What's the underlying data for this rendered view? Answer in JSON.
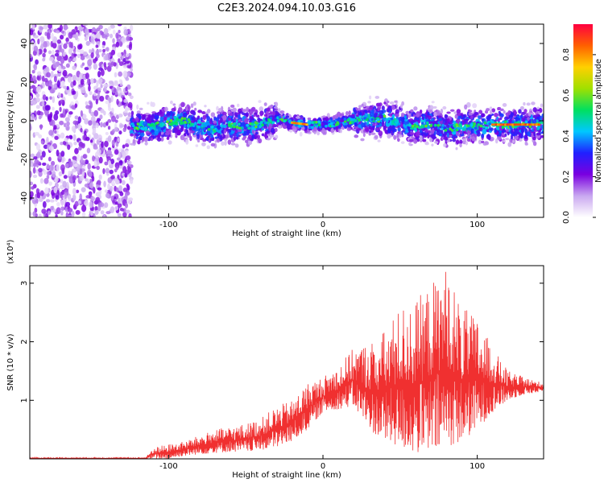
{
  "figure": {
    "title": "C2E3.2024.094.10.03.G16"
  },
  "chart_data": [
    {
      "type": "heatmap",
      "title": "C2E3.2024.094.10.03.G16",
      "xlabel": "Height of straight line (km)",
      "ylabel": "Frequency (Hz)",
      "xlim": [
        -190,
        143
      ],
      "ylim": [
        -50,
        50
      ],
      "x_ticks": [
        -100,
        0,
        100
      ],
      "x_tick_labels": [
        "-100",
        "0",
        "100"
      ],
      "y_ticks": [
        -40,
        -20,
        0,
        20,
        40
      ],
      "y_tick_labels": [
        "-40",
        "-20",
        "0",
        "20",
        "40"
      ],
      "colorbar": {
        "label": "Normalized spectral amplitude",
        "range": [
          0,
          0.95
        ],
        "ticks": [
          0.0,
          0.2,
          0.4,
          0.6,
          0.8
        ],
        "tick_labels": [
          "0.0",
          "0.2",
          "0.4",
          "0.6",
          "0.8"
        ],
        "colormap": [
          "#ffffff",
          "#c9a8f0",
          "#7a00e0",
          "#2020ff",
          "#00c8ff",
          "#00e060",
          "#a0e000",
          "#ffd000",
          "#ff6000",
          "#ff0040"
        ]
      },
      "regions": {
        "noise_floor": {
          "x_range": [
            -190,
            -124
          ],
          "y_range": [
            -50,
            50
          ],
          "level": 0.12
        },
        "signal_band_center": [
          [
            -124,
            -3
          ],
          [
            -110,
            -3
          ],
          [
            -100,
            -1
          ],
          [
            -90,
            0
          ],
          [
            -80,
            -3
          ],
          [
            -70,
            -4
          ],
          [
            -60,
            -2
          ],
          [
            -50,
            -3
          ],
          [
            -40,
            -2
          ],
          [
            -30,
            1
          ],
          [
            -20,
            -1
          ],
          [
            -10,
            -2
          ],
          [
            0,
            -2
          ],
          [
            10,
            -1
          ],
          [
            20,
            0
          ],
          [
            30,
            1
          ],
          [
            40,
            1
          ],
          [
            50,
            -1
          ],
          [
            60,
            -3
          ],
          [
            70,
            -2
          ],
          [
            80,
            -4
          ],
          [
            90,
            -3
          ],
          [
            100,
            -3
          ],
          [
            110,
            -2
          ],
          [
            120,
            -2
          ],
          [
            130,
            -2
          ],
          [
            143,
            -2
          ]
        ],
        "high_amplitude_segments": [
          {
            "x_range": [
              -20,
              -10
            ],
            "y": 0,
            "level": 0.85
          },
          {
            "x_range": [
              110,
              140
            ],
            "y": -2,
            "level": 0.9
          }
        ]
      }
    },
    {
      "type": "line",
      "xlabel": "Height of straight line (km)",
      "ylabel": "SNR (10 * v/v)",
      "y_multiplier": "(x10⁴)",
      "xlim": [
        -190,
        143
      ],
      "ylim": [
        0,
        3.3
      ],
      "x_ticks": [
        -100,
        0,
        100
      ],
      "x_tick_labels": [
        "-100",
        "0",
        "100"
      ],
      "y_ticks": [
        1,
        2,
        3
      ],
      "y_tick_labels": [
        "1",
        "2",
        "3"
      ],
      "series_color": "#f03030",
      "envelope": {
        "x": [
          -190,
          -115,
          -110,
          -100,
          -90,
          -80,
          -70,
          -60,
          -50,
          -40,
          -30,
          -20,
          -10,
          0,
          10,
          20,
          30,
          40,
          50,
          60,
          70,
          80,
          90,
          100,
          110,
          120,
          130,
          143
        ],
        "y_min": [
          0,
          0,
          0.0,
          0.0,
          0.05,
          0.08,
          0.1,
          0.12,
          0.12,
          0.15,
          0.2,
          0.3,
          0.5,
          0.8,
          0.85,
          0.9,
          0.5,
          0.3,
          0.2,
          0.1,
          0.1,
          0.2,
          0.3,
          0.5,
          0.8,
          1.0,
          1.1,
          1.15
        ],
        "y_max": [
          0.02,
          0.02,
          0.2,
          0.25,
          0.3,
          0.4,
          0.5,
          0.55,
          0.6,
          0.7,
          0.9,
          1.0,
          1.3,
          1.4,
          1.6,
          1.9,
          2.0,
          2.2,
          2.6,
          2.7,
          3.0,
          3.3,
          2.6,
          2.4,
          1.9,
          1.5,
          1.4,
          1.3
        ]
      }
    }
  ]
}
